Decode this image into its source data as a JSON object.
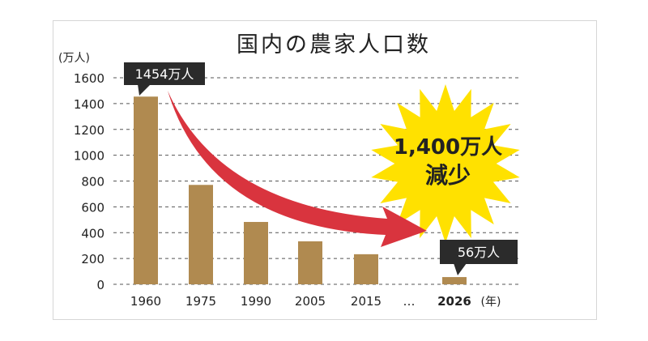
{
  "chart_data": {
    "type": "bar",
    "title": "国内の農家人口数",
    "ylabel": "(万人)",
    "xlabel": "(年)",
    "categories": [
      "1960",
      "1975",
      "1990",
      "2005",
      "2015",
      "2026"
    ],
    "values": [
      1454,
      770,
      483,
      333,
      233,
      56
    ],
    "ylim": [
      0,
      1600
    ],
    "yticks": [
      0,
      200,
      400,
      600,
      800,
      1000,
      1200,
      1400,
      1600
    ],
    "grid": true,
    "ellipsis_label": "…",
    "annotations": {
      "first_label": "1454万人",
      "last_label": "56万人",
      "burst_line1": "1,400万人",
      "burst_line2": "減少"
    },
    "colors": {
      "bar": "#b08a50",
      "arrow": "#d9343e",
      "burst": "#ffe100",
      "callout": "#2b2b2b"
    }
  }
}
